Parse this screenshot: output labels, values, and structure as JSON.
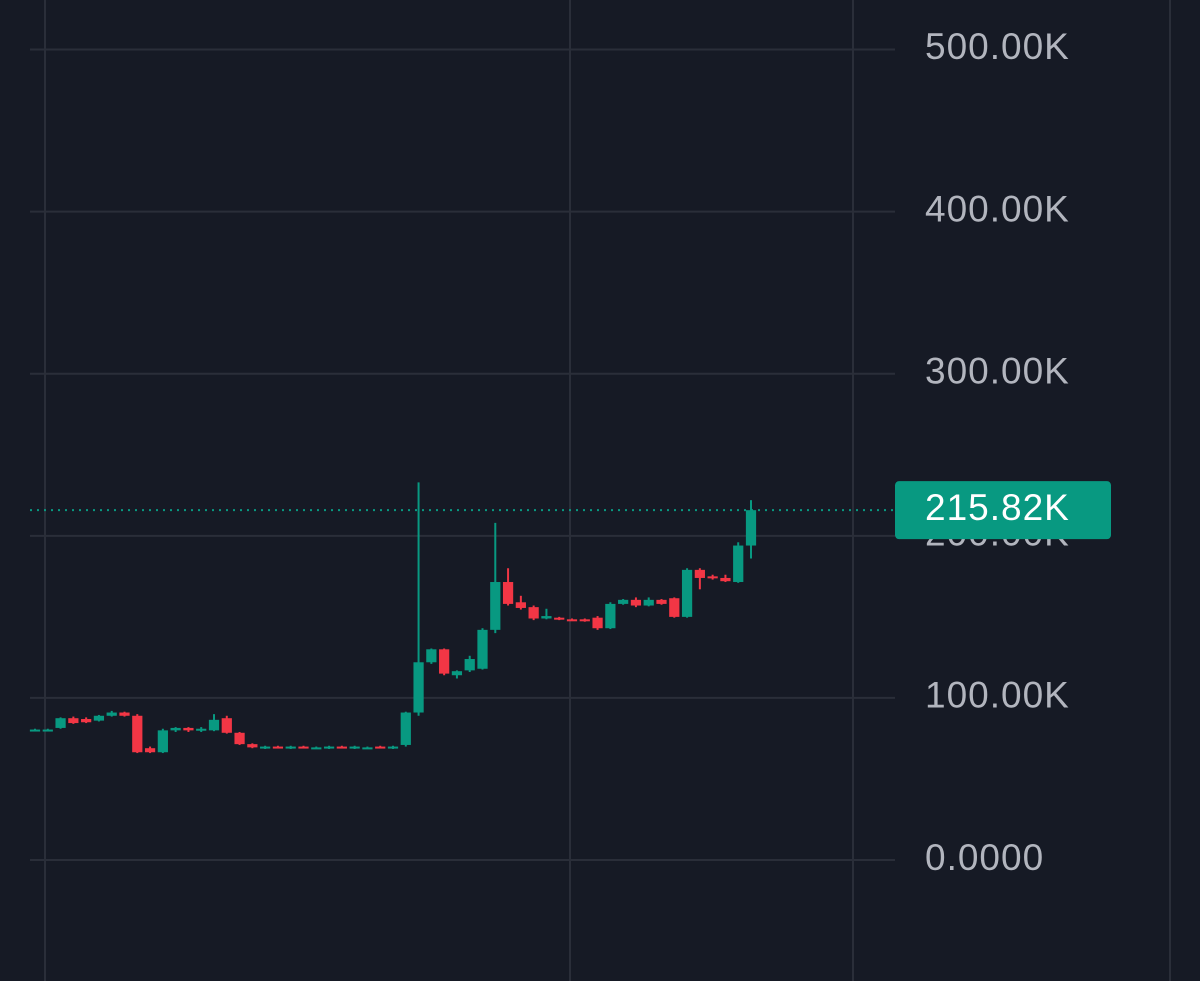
{
  "chart_data": {
    "type": "candlestick",
    "up_color": "#089981",
    "down_color": "#f23645",
    "grid": true,
    "ylim": [
      -74600,
      530500
    ],
    "yticks": [
      {
        "value": 0,
        "label": "0.0000"
      },
      {
        "value": 100000,
        "label": "100.00K"
      },
      {
        "value": 200000,
        "label": "200.00K"
      },
      {
        "value": 300000,
        "label": "300.00K"
      },
      {
        "value": 400000,
        "label": "400.00K"
      },
      {
        "value": 500000,
        "label": "500.00K"
      }
    ],
    "last_value_label": "215.82K",
    "open": [
      80000,
      80000,
      81500,
      87500,
      87000,
      86000,
      89000,
      91000,
      89000,
      69000,
      66500,
      80000,
      81500,
      80000,
      80000,
      87500,
      78500,
      71500,
      69500,
      70000,
      69500,
      70000,
      69000,
      69500,
      70000,
      69500,
      69000,
      70000,
      69500,
      71000,
      91000,
      122000,
      130000,
      114000,
      117000,
      118000,
      142000,
      171500,
      159000,
      156000,
      149000,
      149500,
      148500,
      148500,
      149500,
      143000,
      158000,
      160500,
      157000,
      160500,
      161500,
      150000,
      179000,
      175000,
      174000,
      171500,
      194000
    ],
    "high": [
      81000,
      81000,
      88000,
      88500,
      88000,
      89500,
      92000,
      91500,
      90000,
      70000,
      81000,
      82000,
      82000,
      82000,
      90000,
      89000,
      79000,
      72000,
      70500,
      70500,
      70500,
      70500,
      70000,
      70500,
      70500,
      70500,
      70000,
      70500,
      70500,
      91500,
      233000,
      130500,
      130500,
      117000,
      126000,
      143000,
      208000,
      180000,
      163000,
      157000,
      155000,
      150000,
      149000,
      149000,
      150500,
      159000,
      161000,
      162000,
      162000,
      161000,
      162000,
      180000,
      180000,
      176000,
      176000,
      196000,
      222000
    ],
    "low": [
      79500,
      79500,
      81000,
      84000,
      84500,
      85500,
      88500,
      88500,
      66000,
      66000,
      66000,
      79000,
      79000,
      79000,
      79500,
      78000,
      71000,
      69000,
      68500,
      69000,
      68500,
      69000,
      68500,
      68500,
      69000,
      68500,
      68500,
      69000,
      68500,
      70000,
      89000,
      121000,
      114000,
      112000,
      116000,
      117500,
      140000,
      157000,
      154500,
      148000,
      148500,
      148000,
      147500,
      147000,
      142000,
      142500,
      157500,
      156000,
      156500,
      157500,
      149500,
      149500,
      167000,
      173000,
      171500,
      171000,
      186000
    ],
    "close": [
      80500,
      80500,
      87500,
      84500,
      85000,
      89000,
      91000,
      89000,
      66500,
      66500,
      80000,
      81500,
      80000,
      81000,
      86500,
      78500,
      71500,
      69500,
      70000,
      69500,
      70000,
      69500,
      69500,
      70000,
      69500,
      70000,
      69500,
      69500,
      70000,
      91000,
      122000,
      130000,
      115000,
      116500,
      124000,
      142000,
      171500,
      158000,
      155500,
      149000,
      150500,
      148500,
      147500,
      147500,
      143000,
      158000,
      160500,
      157000,
      160500,
      158000,
      150000,
      179000,
      174000,
      174000,
      172000,
      194000,
      215820
    ]
  }
}
